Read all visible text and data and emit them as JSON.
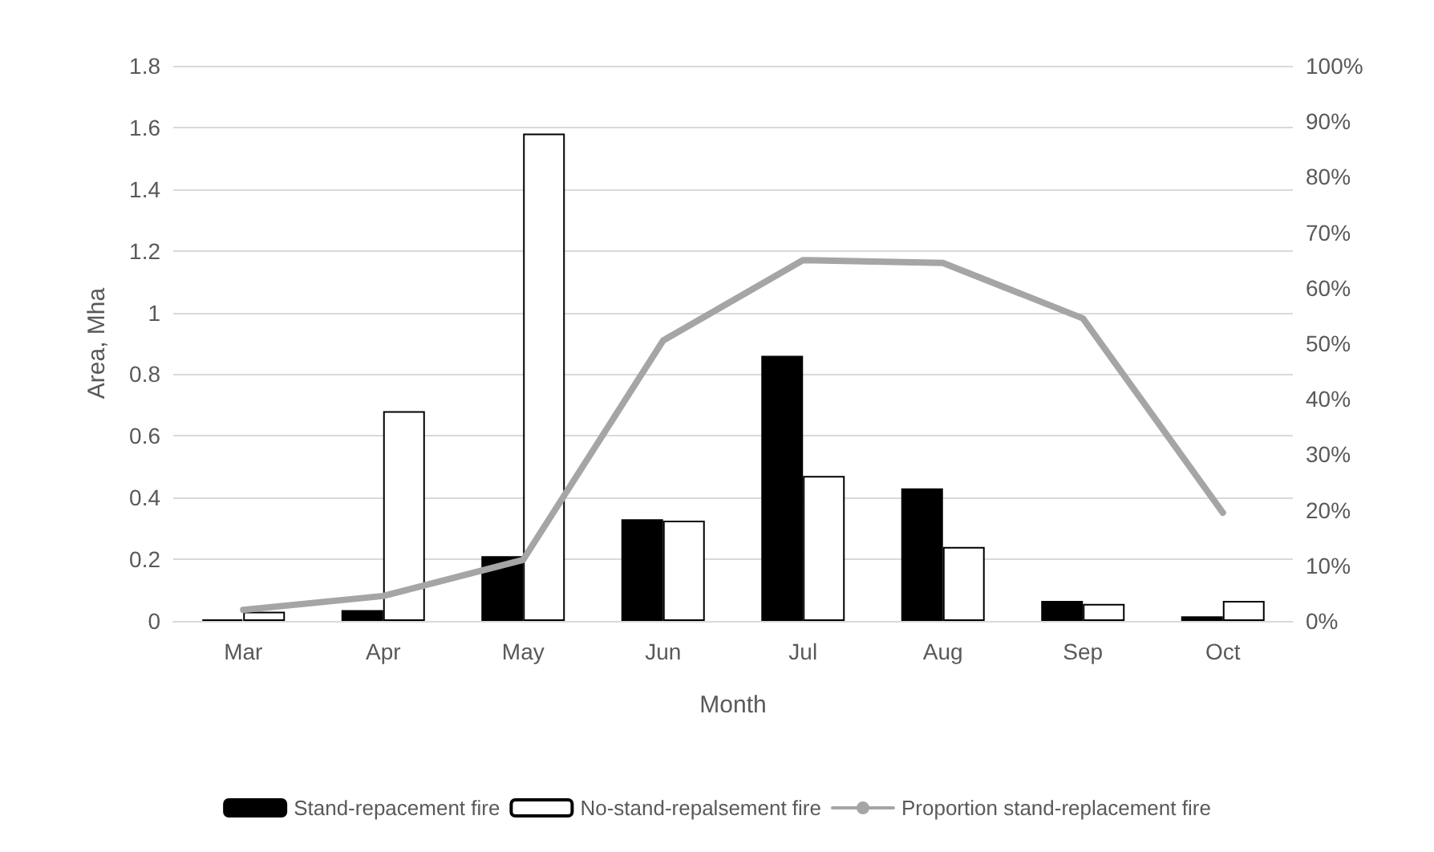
{
  "chart_data": {
    "type": "bar",
    "xlabel": "Month",
    "ylabel": "Area, Mha",
    "categories": [
      "Mar",
      "Apr",
      "May",
      "Jun",
      "Jul",
      "Aug",
      "Sep",
      "Oct"
    ],
    "series": [
      {
        "name": "Stand-repacement fire",
        "color": "#000000",
        "values": [
          0.005,
          0.035,
          0.21,
          0.33,
          0.86,
          0.43,
          0.065,
          0.015
        ]
      },
      {
        "name": "No-stand-repalsement fire",
        "color": "#ffffff",
        "values": [
          0.03,
          0.68,
          1.58,
          0.325,
          0.47,
          0.24,
          0.055,
          0.065
        ]
      },
      {
        "name": "Proportion stand-replacement fire",
        "type": "line",
        "axis": "y2",
        "color": "#a5a5a5",
        "values": [
          2,
          4.5,
          11,
          50.5,
          65,
          64.5,
          54.5,
          19.5
        ]
      }
    ],
    "ylim": [
      0,
      1.8
    ],
    "yticks": [
      0,
      0.2,
      0.4,
      0.6,
      0.8,
      1,
      1.2,
      1.4,
      1.6,
      1.8
    ],
    "y2lim": [
      0,
      100
    ],
    "y2ticks": [
      {
        "value": 0,
        "label": "0%"
      },
      {
        "value": 10,
        "label": "10%"
      },
      {
        "value": 20,
        "label": "20%"
      },
      {
        "value": 30,
        "label": "30%"
      },
      {
        "value": 40,
        "label": "40%"
      },
      {
        "value": 50,
        "label": "50%"
      },
      {
        "value": 60,
        "label": "60%"
      },
      {
        "value": 70,
        "label": "70%"
      },
      {
        "value": 80,
        "label": "80%"
      },
      {
        "value": 90,
        "label": "90%"
      },
      {
        "value": 100,
        "label": "100%"
      }
    ],
    "grid": "y",
    "legend": "bottom",
    "marker": "none",
    "line_style": "solid"
  }
}
